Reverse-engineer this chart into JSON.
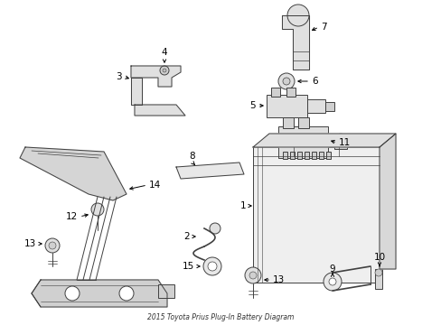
{
  "title": "2015 Toyota Prius Plug-In Battery Diagram",
  "bg_color": "#ffffff",
  "line_color": "#404040",
  "figsize": [
    4.89,
    3.6
  ],
  "dpi": 100,
  "lw": 0.7,
  "font_size": 7.5
}
